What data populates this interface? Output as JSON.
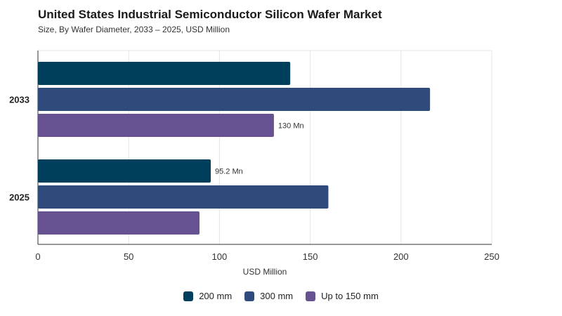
{
  "chart_data": {
    "type": "bar",
    "orientation": "horizontal",
    "title": "United States Industrial Semiconductor Silicon Wafer Market",
    "subtitle": "Size, By Wafer Diameter, 2033 – 2025, USD Million",
    "xlabel": "USD Million",
    "ylabel": "",
    "categories": [
      "2033",
      "2025"
    ],
    "xlim": [
      0,
      250
    ],
    "xticks": [
      0,
      50,
      100,
      150,
      200,
      250
    ],
    "grid": true,
    "legend_position": "bottom",
    "series": [
      {
        "name": "200 mm",
        "color": "#003f5c",
        "values": [
          139,
          95.2
        ],
        "labels": [
          "",
          "95.2 Mn"
        ]
      },
      {
        "name": "300 mm",
        "color": "#2f4b7c",
        "values": [
          216,
          160
        ],
        "labels": [
          "",
          ""
        ]
      },
      {
        "name": "Up to 150 mm",
        "color": "#665191",
        "values": [
          130,
          89
        ],
        "labels": [
          "130 Mn",
          ""
        ]
      }
    ]
  }
}
